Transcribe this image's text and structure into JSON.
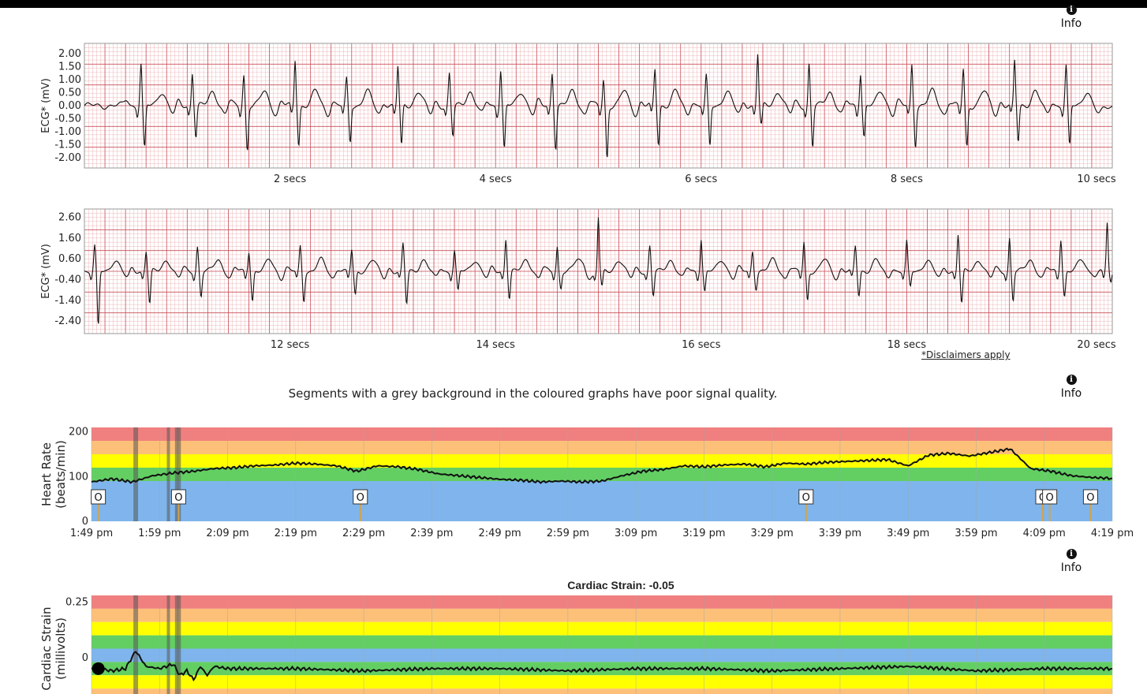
{
  "info_label": "Info",
  "info_icon": "info-circle-icon",
  "disclaimer": "*Disclaimers apply",
  "notice": "Segments with a grey background in the coloured graphs have poor signal quality.",
  "strain_title": "Cardiac Strain: -0.05",
  "colors": {
    "red": "#f08080",
    "orange": "#fdc079",
    "yellow": "#ffff00",
    "green": "#63cf63",
    "blue": "#7fb5ec",
    "grid_major": "#c9515b",
    "grid_minor": "#ecb6b9"
  },
  "chart_data": [
    {
      "type": "line",
      "name": "ecg-strip-1",
      "ylabel": "ECG* (mV)",
      "y_ticks": [
        "2.00",
        "1.50",
        "1.00",
        "0.50",
        "0.00",
        "-0.50",
        "-1.00",
        "-1.50",
        "-2.00"
      ],
      "x_ticks": [
        "2 secs",
        "4 secs",
        "6 secs",
        "8 secs",
        "10 secs"
      ],
      "xlim": [
        0,
        10
      ],
      "ylim": [
        -2.4,
        2.4
      ],
      "grid": true,
      "beats_at_secs": [
        0.55,
        1.05,
        1.55,
        2.05,
        2.55,
        3.05,
        3.55,
        4.05,
        4.55,
        5.05,
        5.55,
        6.05,
        6.55,
        7.05,
        7.55,
        8.05,
        8.55,
        9.05,
        9.55
      ],
      "r_peak_mV": [
        1.6,
        1.3,
        1.2,
        1.8,
        1.0,
        1.5,
        1.2,
        1.4,
        1.3,
        1.0,
        1.4,
        1.1,
        2.0,
        1.6,
        1.3,
        1.6,
        1.4,
        1.7,
        1.5
      ],
      "s_trough_mV": [
        -1.7,
        -1.2,
        -1.7,
        -1.5,
        -1.4,
        -1.6,
        -1.2,
        -1.7,
        -1.6,
        -2.0,
        -1.5,
        -1.6,
        -0.8,
        -1.6,
        -1.2,
        -1.5,
        -1.6,
        -1.4,
        -1.6
      ]
    },
    {
      "type": "line",
      "name": "ecg-strip-2",
      "ylabel": "ECG* (mV)",
      "y_ticks": [
        "2.60",
        "1.60",
        "0.60",
        "-0.40",
        "-1.40",
        "-2.40"
      ],
      "x_ticks": [
        "12 secs",
        "14 secs",
        "16 secs",
        "18 secs",
        "20 secs"
      ],
      "xlim": [
        10,
        20
      ],
      "ylim": [
        -3.0,
        3.0
      ],
      "grid": true,
      "beats_at_secs": [
        10.1,
        10.6,
        11.1,
        11.6,
        12.1,
        12.6,
        13.1,
        13.6,
        14.1,
        14.6,
        15.0,
        15.5,
        16.0,
        16.5,
        17.0,
        17.5,
        18.0,
        18.5,
        19.0,
        19.5,
        19.95
      ],
      "r_peak_mV": [
        1.2,
        1.0,
        1.2,
        1.0,
        1.2,
        1.0,
        1.3,
        1.0,
        1.6,
        1.2,
        2.6,
        1.2,
        1.6,
        1.0,
        1.4,
        1.2,
        1.4,
        1.8,
        1.6,
        1.6,
        2.3
      ],
      "s_trough_mV": [
        -2.7,
        -1.6,
        -1.2,
        -1.4,
        -1.4,
        -1.2,
        -1.6,
        -1.0,
        -1.3,
        -0.8,
        -0.8,
        -1.2,
        -1.0,
        -0.8,
        -1.4,
        -1.2,
        -0.8,
        -1.6,
        -1.4,
        -1.2,
        -0.6
      ]
    },
    {
      "type": "line",
      "name": "heart-rate",
      "ylabel": [
        "Heart Rate",
        "(beats/min)"
      ],
      "y_ticks": [
        0,
        100,
        200
      ],
      "ylim": [
        0,
        210
      ],
      "x_ticks": [
        "1:49 pm",
        "1:59 pm",
        "2:09 pm",
        "2:19 pm",
        "2:29 pm",
        "2:39 pm",
        "2:49 pm",
        "2:59 pm",
        "3:09 pm",
        "3:19 pm",
        "3:29 pm",
        "3:39 pm",
        "3:49 pm",
        "3:59 pm",
        "4:09 pm",
        "4:19 pm"
      ],
      "x_minutes": [
        0,
        150
      ],
      "zones": [
        {
          "from": 180,
          "to": 210,
          "color": "#f08080"
        },
        {
          "from": 150,
          "to": 180,
          "color": "#fdc079"
        },
        {
          "from": 120,
          "to": 150,
          "color": "#ffff00"
        },
        {
          "from": 90,
          "to": 120,
          "color": "#63cf63"
        },
        {
          "from": 0,
          "to": 90,
          "color": "#7fb5ec"
        }
      ],
      "poor_signal_minutes": [
        6.5,
        11.3,
        12.5,
        12.9
      ],
      "markers": [
        {
          "minute": 1.0,
          "label": "O"
        },
        {
          "minute": 12.8,
          "label": "O"
        },
        {
          "minute": 39.5,
          "label": "O"
        },
        {
          "minute": 105.0,
          "label": "O"
        },
        {
          "minute": 139.8,
          "label": "O"
        },
        {
          "minute": 140.8,
          "label": "O"
        },
        {
          "minute": 146.8,
          "label": "O"
        }
      ],
      "x": [
        0,
        3,
        6,
        9,
        12,
        15,
        18,
        21,
        24,
        27,
        30,
        33,
        36,
        39,
        42,
        45,
        48,
        51,
        54,
        57,
        60,
        63,
        66,
        69,
        72,
        75,
        78,
        81,
        84,
        87,
        90,
        93,
        96,
        99,
        102,
        105,
        108,
        111,
        114,
        117,
        120,
        123,
        126,
        129,
        132,
        135,
        138,
        141,
        144,
        147,
        150
      ],
      "y": [
        88,
        95,
        88,
        102,
        108,
        112,
        118,
        120,
        124,
        126,
        130,
        128,
        124,
        112,
        124,
        122,
        116,
        106,
        102,
        98,
        94,
        92,
        88,
        90,
        88,
        90,
        102,
        112,
        116,
        124,
        122,
        126,
        128,
        122,
        130,
        128,
        132,
        134,
        136,
        138,
        124,
        148,
        152,
        146,
        154,
        162,
        118,
        112,
        102,
        98,
        96
      ]
    },
    {
      "type": "line",
      "name": "cardiac-strain",
      "title": "Cardiac Strain: -0.05",
      "ylabel": [
        "Cardiac Strain",
        "(millivolts)"
      ],
      "y_ticks": [
        0,
        0.25
      ],
      "ylim": [
        -0.2,
        0.28
      ],
      "x_minutes": [
        0,
        150
      ],
      "zones": [
        {
          "from": 0.22,
          "to": 0.28,
          "color": "#f08080"
        },
        {
          "from": 0.16,
          "to": 0.22,
          "color": "#fdc079"
        },
        {
          "from": 0.1,
          "to": 0.16,
          "color": "#ffff00"
        },
        {
          "from": 0.04,
          "to": 0.1,
          "color": "#63cf63"
        },
        {
          "from": -0.02,
          "to": 0.04,
          "color": "#7fb5ec"
        },
        {
          "from": -0.08,
          "to": -0.02,
          "color": "#63cf63"
        },
        {
          "from": -0.14,
          "to": -0.08,
          "color": "#ffff00"
        },
        {
          "from": -0.2,
          "to": -0.14,
          "color": "#fdc079"
        }
      ],
      "poor_signal_minutes": [
        6.5,
        11.3,
        12.5,
        12.9
      ],
      "current_point": {
        "minute": 1.0,
        "value": -0.05
      },
      "x": [
        0,
        1,
        3,
        5,
        6.5,
        8,
        10,
        12,
        13,
        14,
        15,
        16,
        17,
        18,
        20,
        30,
        40,
        50,
        60,
        70,
        80,
        90,
        100,
        110,
        120,
        130,
        140,
        150
      ],
      "y": [
        -0.05,
        -0.05,
        -0.06,
        -0.05,
        0.03,
        -0.04,
        -0.05,
        -0.03,
        -0.08,
        -0.06,
        -0.1,
        -0.04,
        -0.08,
        -0.04,
        -0.05,
        -0.05,
        -0.06,
        -0.05,
        -0.05,
        -0.06,
        -0.05,
        -0.05,
        -0.06,
        -0.05,
        -0.04,
        -0.06,
        -0.05,
        -0.05
      ]
    }
  ]
}
